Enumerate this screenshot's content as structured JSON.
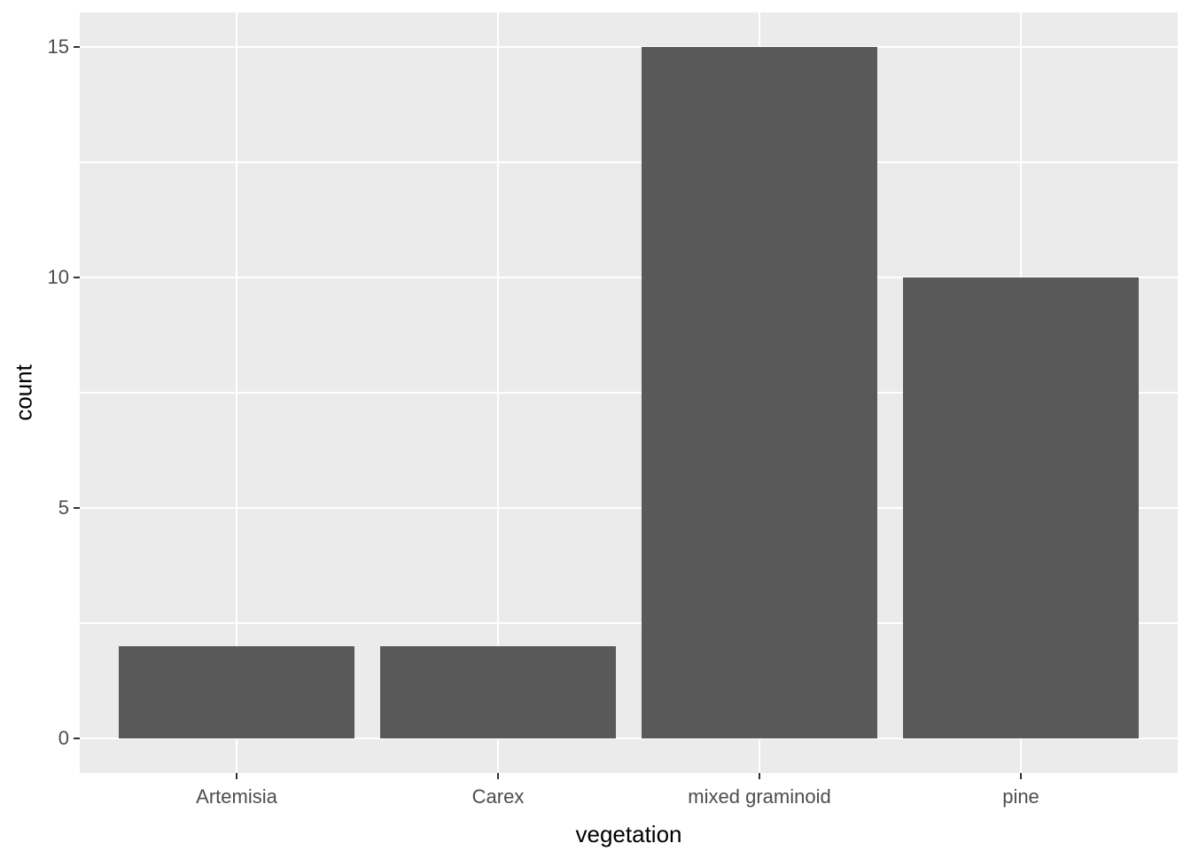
{
  "chart_data": {
    "type": "bar",
    "title": "",
    "xlabel": "vegetation",
    "ylabel": "count",
    "categories": [
      "Artemisia",
      "Carex",
      "mixed graminoid",
      "pine"
    ],
    "values": [
      2,
      2,
      15,
      10
    ],
    "yticks": [
      0,
      5,
      10,
      15
    ],
    "ytick_labels": [
      "0",
      "5",
      "10",
      "15"
    ],
    "y_minor_breaks": [
      2.5,
      7.5,
      12.5
    ],
    "ylim": [
      0,
      15
    ],
    "y_expand": 0.75,
    "x_band_expand": 0.6,
    "bar_width_frac": 0.9,
    "grid": "on",
    "legend_position": "none",
    "colors": {
      "bar": "#595959",
      "panel_bg": "#EBEBEB",
      "grid_major": "#FFFFFF",
      "grid_minor": "#FFFFFF",
      "tick_label": "#4D4D4D",
      "axis_title": "#000000",
      "tick_mark": "#333333",
      "page_bg": "#FFFFFF"
    }
  }
}
